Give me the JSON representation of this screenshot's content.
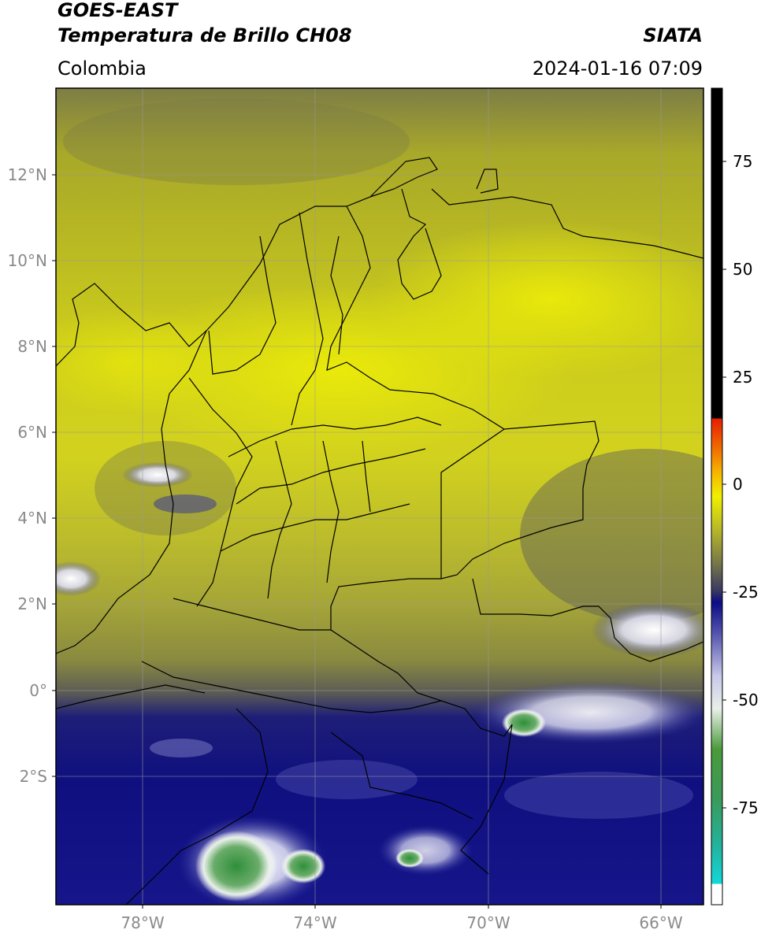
{
  "header": {
    "satellite": "GOES-EAST",
    "product": "Temperatura de Brillo CH08",
    "source": "SIATA",
    "region": "Colombia",
    "timestamp": "2024-01-16 07:09"
  },
  "map": {
    "lat_labels": [
      "12°N",
      "10°N",
      "8°N",
      "6°N",
      "4°N",
      "2°N",
      "0°",
      "2°S"
    ],
    "lon_labels": [
      "78°W",
      "74°W",
      "70°W",
      "66°W"
    ],
    "extent": {
      "lon_min": -80.0,
      "lon_max": -65.0,
      "lat_min": -5.0,
      "lat_max": 14.0
    }
  },
  "colorbar": {
    "ticks": [
      "75",
      "50",
      "25",
      "0",
      "-25",
      "-50",
      "-75"
    ],
    "range": [
      -95,
      90
    ],
    "units": ""
  },
  "colors": {
    "warm_dry": "#b7b728",
    "bright_yellow": "#e2e20a",
    "gray_mid": "#6e6e3a",
    "deep_blue": "#0d0d7a",
    "white_cloud": "#f2f2fb",
    "green_cold": "#3a9a3a"
  }
}
